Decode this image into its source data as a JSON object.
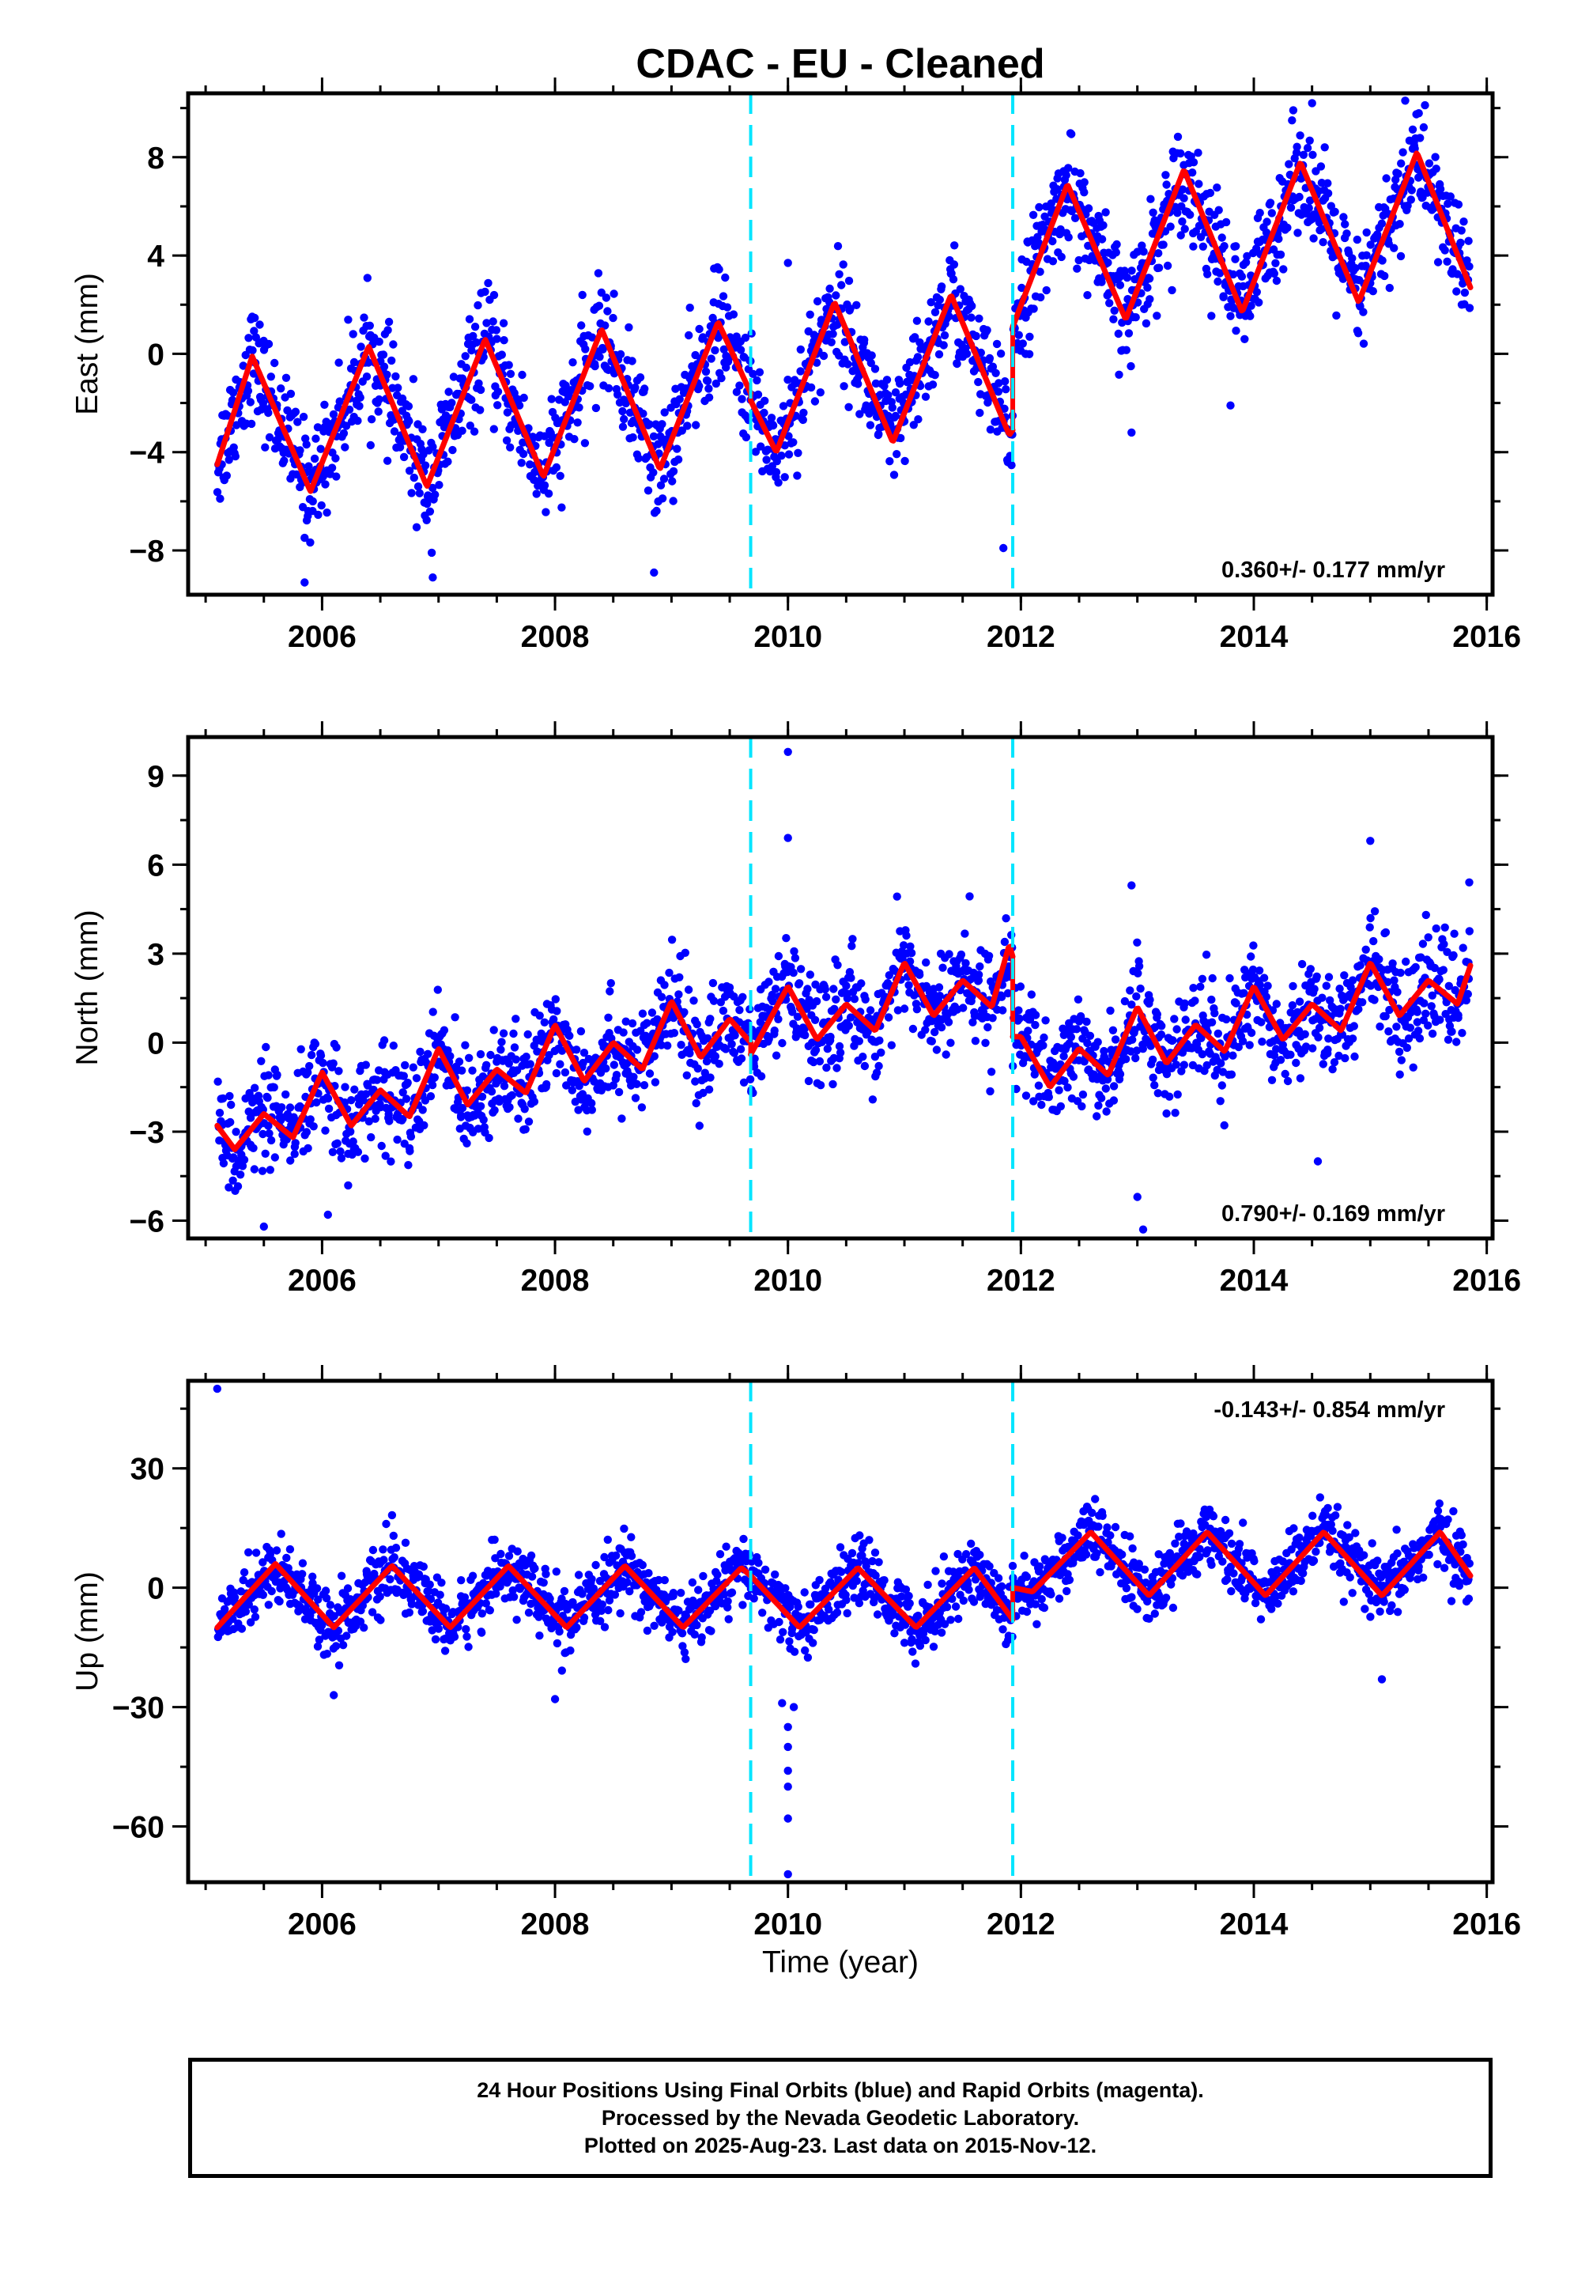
{
  "chart_data": {
    "title": "CDAC  - EU - Cleaned",
    "xlabel": "Time (year)",
    "type": "scatter",
    "xlim": [
      2004.85,
      2016.05
    ],
    "xticks": [
      2006,
      2008,
      2010,
      2012,
      2014,
      2016
    ],
    "x_minor_step": 0.5,
    "discontinuities": [
      2009.68,
      2011.93
    ],
    "colors": {
      "final_orbits": "#0000ff",
      "model_fit": "#ff0000",
      "discontinuity": "#00e5ff",
      "frame": "#000000"
    },
    "panels": [
      {
        "component": "East",
        "ylabel": "East (mm)",
        "ylim": [
          -9.8,
          10.6
        ],
        "yticks": [
          -8,
          -4,
          0,
          4,
          8
        ],
        "y_minor_step": 2,
        "rate_label": "0.360+/- 0.177 mm/yr",
        "rate_label_position": "bottom-right",
        "model_fit": {
          "segments": [
            {
              "x": [
                2005.1,
                2005.4,
                2005.9,
                2006.4,
                2006.9,
                2007.4,
                2007.9,
                2008.4,
                2008.9,
                2009.4,
                2009.68
              ],
              "y": [
                -4.5,
                -0.1,
                -5.6,
                0.3,
                -5.4,
                0.6,
                -5.0,
                1.0,
                -4.7,
                1.3,
                -1.6
              ]
            },
            {
              "x": [
                2009.68,
                2009.9,
                2010.4,
                2010.9,
                2011.4,
                2011.9,
                2011.93
              ],
              "y": [
                -1.9,
                -4.0,
                2.1,
                -3.6,
                2.4,
                -3.3,
                -3.1
              ]
            },
            {
              "x": [
                2011.93,
                2012.4,
                2012.9,
                2013.4,
                2013.9,
                2014.4,
                2014.9,
                2015.4,
                2015.86
              ],
              "y": [
                1.1,
                6.9,
                1.4,
                7.5,
                1.7,
                7.8,
                2.1,
                8.2,
                2.7
              ]
            }
          ]
        },
        "outliers": [
          {
            "x": 2005.85,
            "y": -9.3
          },
          {
            "x": 2006.95,
            "y": -9.1
          },
          {
            "x": 2008.85,
            "y": -8.9
          },
          {
            "x": 2011.85,
            "y": -7.9
          },
          {
            "x": 2012.95,
            "y": -3.2
          },
          {
            "x": 2013.8,
            "y": -2.1
          },
          {
            "x": 2014.5,
            "y": 10.2
          },
          {
            "x": 2015.3,
            "y": 10.3
          },
          {
            "x": 2010.0,
            "y": 3.7
          }
        ]
      },
      {
        "component": "North",
        "ylabel": "North (mm)",
        "ylim": [
          -6.6,
          10.3
        ],
        "yticks": [
          -6,
          -3,
          0,
          3,
          6,
          9
        ],
        "y_minor_step": 1.5,
        "rate_label": "0.790+/- 0.169 mm/yr",
        "rate_label_position": "bottom-right",
        "model_fit": {
          "segments": [
            {
              "x": [
                2005.1,
                2005.25,
                2005.5,
                2005.75,
                2006.0,
                2006.25,
                2006.5,
                2006.75,
                2007.0,
                2007.25,
                2007.5,
                2007.75,
                2008.0,
                2008.25,
                2008.5,
                2008.75,
                2009.0,
                2009.25,
                2009.5,
                2009.68
              ],
              "y": [
                -2.8,
                -3.6,
                -2.4,
                -3.2,
                -1.0,
                -2.8,
                -1.6,
                -2.5,
                -0.2,
                -2.1,
                -0.9,
                -1.7,
                0.6,
                -1.3,
                0.0,
                -0.9,
                1.4,
                -0.5,
                0.8,
                0.0
              ]
            },
            {
              "x": [
                2009.68,
                2010.0,
                2010.25,
                2010.5,
                2010.75,
                2011.0,
                2011.25,
                2011.5,
                2011.75,
                2011.9,
                2011.93
              ],
              "y": [
                -0.4,
                1.9,
                0.1,
                1.3,
                0.4,
                2.7,
                0.9,
                2.1,
                1.2,
                3.3,
                2.9
              ]
            },
            {
              "x": [
                2011.93,
                2012.0,
                2012.25,
                2012.5,
                2012.75,
                2013.0,
                2013.25,
                2013.5,
                2013.75,
                2014.0,
                2014.25,
                2014.5,
                2014.75,
                2015.0,
                2015.25,
                2015.5,
                2015.75,
                2015.86
              ],
              "y": [
                0.2,
                0.2,
                -1.5,
                -0.2,
                -1.1,
                1.2,
                -0.7,
                0.6,
                -0.3,
                1.9,
                0.1,
                1.3,
                0.4,
                2.7,
                0.9,
                2.1,
                1.3,
                2.6
              ]
            }
          ]
        },
        "outliers": [
          {
            "x": 2010.0,
            "y": 9.8
          },
          {
            "x": 2010.0,
            "y": 6.9
          },
          {
            "x": 2013.05,
            "y": -6.3
          },
          {
            "x": 2013.0,
            "y": -5.2
          },
          {
            "x": 2014.55,
            "y": -4.0
          },
          {
            "x": 2015.0,
            "y": 6.8
          },
          {
            "x": 2015.85,
            "y": 5.4
          },
          {
            "x": 2006.05,
            "y": -5.8
          },
          {
            "x": 2005.5,
            "y": -6.2
          },
          {
            "x": 2012.95,
            "y": 5.3
          }
        ]
      },
      {
        "component": "Up",
        "ylabel": "Up (mm)",
        "ylim": [
          -74,
          52
        ],
        "yticks": [
          -60,
          -30,
          0,
          30
        ],
        "y_minor_step": 15,
        "rate_label": "-0.143+/- 0.854 mm/yr",
        "rate_label_position": "top-right",
        "model_fit": {
          "segments": [
            {
              "x": [
                2005.1,
                2005.6,
                2006.1,
                2006.6,
                2007.1,
                2007.6,
                2008.1,
                2008.6,
                2009.1,
                2009.6,
                2009.68
              ],
              "y": [
                -10,
                6,
                -10,
                5.5,
                -10,
                5.5,
                -10,
                5.5,
                -10,
                5,
                3
              ]
            },
            {
              "x": [
                2009.68,
                2010.1,
                2010.6,
                2011.1,
                2011.6,
                2011.93
              ],
              "y": [
                3,
                -10,
                5,
                -10,
                5,
                -8
              ]
            },
            {
              "x": [
                2011.93,
                2012.1,
                2012.6,
                2013.1,
                2013.6,
                2014.1,
                2014.6,
                2015.1,
                2015.6,
                2015.86
              ],
              "y": [
                0,
                -1,
                14,
                -2,
                14,
                -2,
                14,
                -2,
                14,
                3
              ]
            }
          ]
        },
        "outliers": [
          {
            "x": 2005.1,
            "y": 50
          },
          {
            "x": 2010.0,
            "y": -72
          },
          {
            "x": 2010.0,
            "y": -58
          },
          {
            "x": 2010.0,
            "y": -50
          },
          {
            "x": 2010.0,
            "y": -46
          },
          {
            "x": 2010.0,
            "y": -40
          },
          {
            "x": 2010.0,
            "y": -35
          },
          {
            "x": 2010.05,
            "y": -30
          },
          {
            "x": 2009.95,
            "y": -29
          },
          {
            "x": 2006.1,
            "y": -27
          },
          {
            "x": 2008.0,
            "y": -28
          },
          {
            "x": 2015.1,
            "y": -23
          }
        ]
      }
    ]
  },
  "footer": {
    "line1": "24 Hour Positions Using Final Orbits (blue) and Rapid Orbits (magenta).",
    "line2": "Processed by the Nevada Geodetic Laboratory.",
    "line3": "Plotted on 2025-Aug-23. Last data on 2015-Nov-12."
  }
}
